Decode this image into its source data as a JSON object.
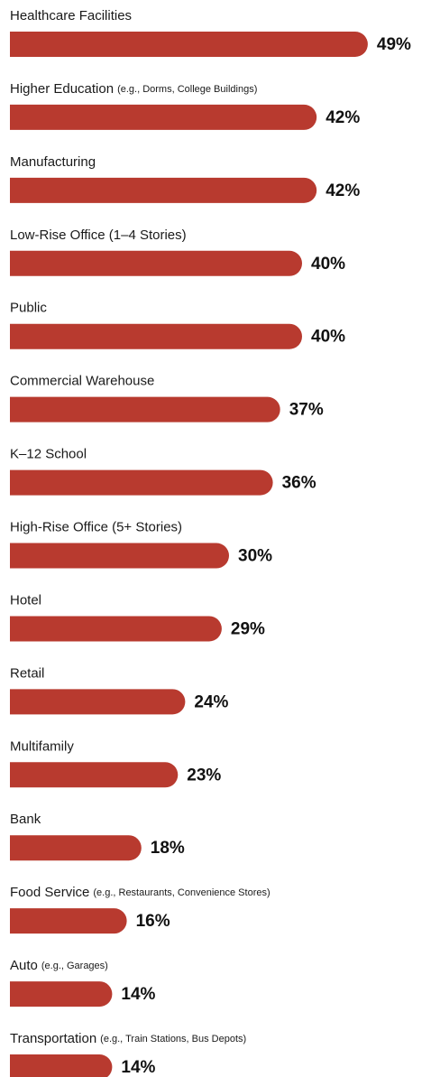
{
  "chart_data": {
    "type": "bar",
    "orientation": "horizontal",
    "categories": [
      "Healthcare  Facilities",
      "Higher Education",
      "Manufacturing",
      "Low-Rise Office (1–4 Stories)",
      "Public",
      "Commercial Warehouse",
      "K–12 School",
      "High-Rise Office (5+ Stories)",
      "Hotel",
      "Retail",
      "Multifamily",
      "Bank",
      "Food Service",
      "Auto",
      "Transportation"
    ],
    "category_notes": [
      null,
      "(e.g., Dorms, College Buildings)",
      null,
      null,
      null,
      null,
      null,
      null,
      null,
      null,
      null,
      null,
      "(e.g., Restaurants, Convenience Stores)",
      "(e.g., Garages)",
      "(e.g., Train Stations, Bus Depots)"
    ],
    "values": [
      49,
      42,
      42,
      40,
      40,
      37,
      36,
      30,
      29,
      24,
      23,
      18,
      16,
      14,
      14
    ],
    "value_labels": [
      "49%",
      "42%",
      "42%",
      "40%",
      "40%",
      "37%",
      "36%",
      "30%",
      "29%",
      "24%",
      "23%",
      "18%",
      "16%",
      "14%",
      "14%"
    ],
    "color": "#b83a2f",
    "xlim": [
      0,
      50
    ]
  }
}
